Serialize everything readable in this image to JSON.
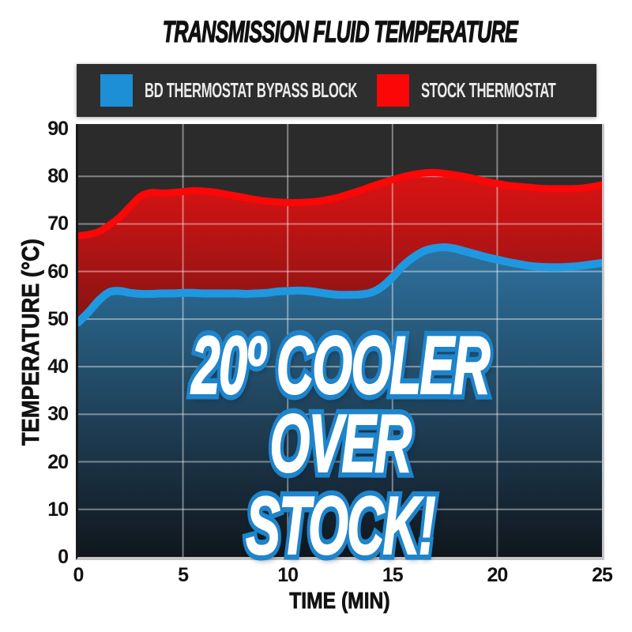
{
  "title": "TRANSMISSION FLUID TEMPERATURE",
  "legend": {
    "items": [
      {
        "label": "BD THERMOSTAT BYPASS BLOCK",
        "color": "#1c8fd6"
      },
      {
        "label": "STOCK THERMOSTAT",
        "color": "#fb0707"
      }
    ]
  },
  "overlay": {
    "line1": "20º COOLER",
    "line2": "OVER STOCK!"
  },
  "axes": {
    "x_label": "TIME (MIN)",
    "y_label": "TEMPERATURE (°C)"
  },
  "chart_data": {
    "type": "area",
    "title": "TRANSMISSION FLUID TEMPERATURE",
    "xlabel": "TIME (MIN)",
    "ylabel": "TEMPERATURE (°C)",
    "xlim": [
      0,
      25
    ],
    "ylim": [
      0,
      91
    ],
    "x_ticks": [
      0,
      5,
      10,
      15,
      20,
      25
    ],
    "y_ticks": [
      0,
      10,
      20,
      30,
      40,
      50,
      60,
      70,
      80,
      90
    ],
    "grid": true,
    "grid_color": "rgba(255,255,255,0.42)",
    "plot_background": "#2b2b2b",
    "legend_position": "top",
    "annotation": "20º COOLER OVER STOCK!",
    "series": [
      {
        "name": "BD THERMOSTAT BYPASS BLOCK",
        "line_color": "#1f98e2",
        "line_width": 10,
        "fill_stops": [
          [
            "0%",
            "#3583b8"
          ],
          [
            "28%",
            "#2e72a0"
          ],
          [
            "55%",
            "#24516f"
          ],
          [
            "80%",
            "#1a3042"
          ],
          [
            "100%",
            "#10161c"
          ]
        ],
        "points": [
          [
            0,
            49.3
          ],
          [
            0.5,
            51.5
          ],
          [
            1,
            54
          ],
          [
            1.5,
            55.7
          ],
          [
            2,
            55.9
          ],
          [
            2.5,
            55.5
          ],
          [
            3,
            55.3
          ],
          [
            3.5,
            55.3
          ],
          [
            4,
            55.4
          ],
          [
            4.5,
            55.4
          ],
          [
            5,
            55.5
          ],
          [
            5.5,
            55.5
          ],
          [
            6,
            55.4
          ],
          [
            6.5,
            55.4
          ],
          [
            7,
            55.4
          ],
          [
            7.5,
            55.4
          ],
          [
            8,
            55.3
          ],
          [
            8.5,
            55.4
          ],
          [
            9,
            55.5
          ],
          [
            9.5,
            55.8
          ],
          [
            10,
            55.9
          ],
          [
            10.5,
            56
          ],
          [
            11,
            55.9
          ],
          [
            11.5,
            55.6
          ],
          [
            12,
            55.3
          ],
          [
            12.5,
            55.1
          ],
          [
            13,
            55.1
          ],
          [
            13.5,
            55.2
          ],
          [
            14,
            55.6
          ],
          [
            14.5,
            56.8
          ],
          [
            15,
            58.8
          ],
          [
            15.5,
            61.2
          ],
          [
            16,
            63
          ],
          [
            16.5,
            64.3
          ],
          [
            17,
            64.9
          ],
          [
            17.5,
            65.1
          ],
          [
            18,
            64.8
          ],
          [
            18.5,
            64.2
          ],
          [
            19,
            63.6
          ],
          [
            19.5,
            63
          ],
          [
            20,
            62.5
          ],
          [
            20.5,
            62
          ],
          [
            21,
            61.6
          ],
          [
            21.5,
            61.2
          ],
          [
            22,
            61
          ],
          [
            22.5,
            60.9
          ],
          [
            23,
            60.9
          ],
          [
            23.5,
            61
          ],
          [
            24,
            61.2
          ],
          [
            24.5,
            61.5
          ],
          [
            25,
            61.8
          ]
        ]
      },
      {
        "name": "STOCK THERMOSTAT",
        "line_color": "#fb0707",
        "line_width": 9,
        "fill_stops": [
          [
            "0%",
            "#f01414"
          ],
          [
            "18%",
            "#cc1313"
          ],
          [
            "42%",
            "#8e1414"
          ],
          [
            "70%",
            "#581010"
          ],
          [
            "100%",
            "#3a0909"
          ]
        ],
        "points": [
          [
            0,
            67.5
          ],
          [
            0.5,
            67.8
          ],
          [
            1,
            68.4
          ],
          [
            1.5,
            69.8
          ],
          [
            2,
            71.5
          ],
          [
            2.5,
            73.8
          ],
          [
            3,
            75.9
          ],
          [
            3.5,
            76.6
          ],
          [
            4,
            76.5
          ],
          [
            4.5,
            76.6
          ],
          [
            5,
            76.8
          ],
          [
            5.5,
            77
          ],
          [
            6,
            76.9
          ],
          [
            6.5,
            76.7
          ],
          [
            7,
            76.3
          ],
          [
            7.5,
            75.9
          ],
          [
            8,
            75.5
          ],
          [
            8.5,
            75.1
          ],
          [
            9,
            74.8
          ],
          [
            9.5,
            74.6
          ],
          [
            10,
            74.5
          ],
          [
            10.5,
            74.5
          ],
          [
            11,
            74.6
          ],
          [
            11.5,
            74.8
          ],
          [
            12,
            75.2
          ],
          [
            12.5,
            75.7
          ],
          [
            13,
            76.4
          ],
          [
            13.5,
            77.1
          ],
          [
            14,
            77.9
          ],
          [
            14.5,
            78.6
          ],
          [
            15,
            79.3
          ],
          [
            15.5,
            79.9
          ],
          [
            16,
            80.4
          ],
          [
            16.5,
            80.7
          ],
          [
            17,
            80.8
          ],
          [
            17.5,
            80.6
          ],
          [
            18,
            80.3
          ],
          [
            18.5,
            79.9
          ],
          [
            19,
            79.4
          ],
          [
            19.5,
            78.9
          ],
          [
            20,
            78.5
          ],
          [
            20.5,
            78.1
          ],
          [
            21,
            77.9
          ],
          [
            21.5,
            77.7
          ],
          [
            22,
            77.5
          ],
          [
            22.5,
            77.4
          ],
          [
            23,
            77.4
          ],
          [
            23.5,
            77.4
          ],
          [
            24,
            77.5
          ],
          [
            24.5,
            77.8
          ],
          [
            25,
            78.2
          ]
        ]
      }
    ]
  }
}
